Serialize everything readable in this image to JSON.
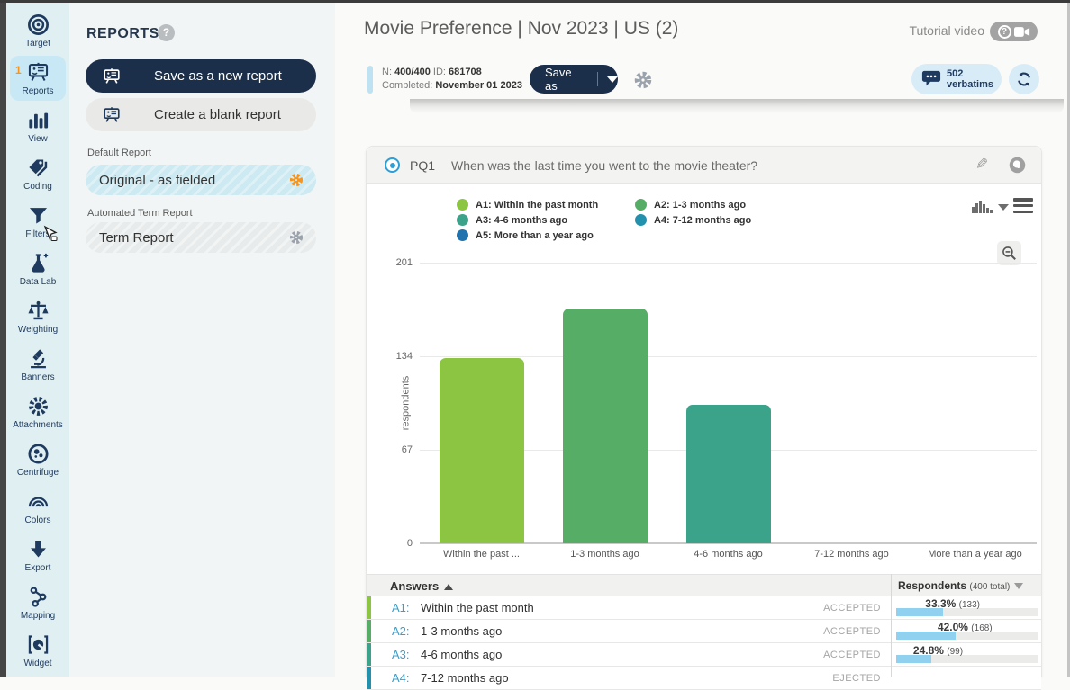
{
  "sidebar": {
    "items": [
      {
        "id": "target",
        "label": "Target",
        "icon": "target-icon",
        "active": false
      },
      {
        "id": "reports",
        "label": "Reports",
        "icon": "reports-icon",
        "active": true,
        "badge": "1"
      },
      {
        "id": "view",
        "label": "View",
        "icon": "bar-chart-icon",
        "active": false
      },
      {
        "id": "coding",
        "label": "Coding",
        "icon": "tags-icon",
        "active": false
      },
      {
        "id": "filters",
        "label": "Filters",
        "icon": "funnel-icon",
        "active": false,
        "cursor": true
      },
      {
        "id": "datalab",
        "label": "Data Lab",
        "icon": "flask-icon",
        "active": false
      },
      {
        "id": "weighting",
        "label": "Weighting",
        "icon": "scale-icon",
        "active": false
      },
      {
        "id": "banners",
        "label": "Banners",
        "icon": "microscope-icon",
        "active": false
      },
      {
        "id": "attachments",
        "label": "Attachments",
        "icon": "gear-sun-icon",
        "active": false
      },
      {
        "id": "centrifuge",
        "label": "Centrifuge",
        "icon": "centrifuge-icon",
        "active": false
      },
      {
        "id": "colors",
        "label": "Colors",
        "icon": "rainbow-icon",
        "active": false
      },
      {
        "id": "export",
        "label": "Export",
        "icon": "down-arrow-icon",
        "active": false
      },
      {
        "id": "mapping",
        "label": "Mapping",
        "icon": "nodes-icon",
        "active": false
      },
      {
        "id": "widget",
        "label": "Widget",
        "icon": "widget-icon",
        "active": false
      }
    ]
  },
  "reports_panel": {
    "title": "REPORTS",
    "save_button": "Save as a new report",
    "create_button": "Create a blank report",
    "default_section_label": "Default Report",
    "default_item": "Original - as fielded",
    "term_section_label": "Automated Term Report",
    "term_item": "Term Report"
  },
  "header": {
    "title": "Movie Preference | Nov 2023 | US (2)",
    "tutorial_label": "Tutorial video"
  },
  "toolbar": {
    "n_label": "N:",
    "n_value": "400/400",
    "id_label": "ID:",
    "id_value": "681708",
    "completed_label": "Completed:",
    "completed_value": "November 01 2023",
    "save_as_label": "Save as",
    "verbatims_count": "502",
    "verbatims_label": "verbatims"
  },
  "question": {
    "code": "PQ1",
    "text": "When was the last time you went to the movie theater?"
  },
  "chart_data": {
    "type": "bar",
    "ylabel": "respondents",
    "categories": [
      "Within the past month",
      "1-3 months ago",
      "4-6 months ago",
      "7-12 months ago",
      "More than a year ago"
    ],
    "x_tick_labels": [
      "Within the past ...",
      "1-3 months ago",
      "4-6 months ago",
      "7-12 months ago",
      "More than a year ago"
    ],
    "values": [
      133,
      168,
      99,
      0,
      0
    ],
    "colors": [
      "#8bc541",
      "#56ad66",
      "#3aa389",
      "#2191ae",
      "#2173ad"
    ],
    "ylim": [
      0,
      201
    ],
    "yticks": [
      0,
      67,
      134,
      201
    ],
    "grid": true,
    "legend_position": "top",
    "legend": [
      {
        "label": "A1: Within the past month",
        "color": "#8bc541"
      },
      {
        "label": "A2: 1-3 months ago",
        "color": "#56ad66"
      },
      {
        "label": "A3: 4-6 months ago",
        "color": "#3aa389"
      },
      {
        "label": "A4: 7-12 months ago",
        "color": "#2191ae"
      },
      {
        "label": "A5: More than a year ago",
        "color": "#2173ad"
      }
    ]
  },
  "table": {
    "answers_header": "Answers",
    "respondents_header": "Respondents",
    "respondents_total": "(400 total)",
    "rows": [
      {
        "code": "A1:",
        "label": "Within the past month",
        "status": "ACCEPTED",
        "pct_text": "33.3%",
        "count_text": "(133)",
        "pct": 33.3,
        "color": "#8bc541"
      },
      {
        "code": "A2:",
        "label": "1-3 months ago",
        "status": "ACCEPTED",
        "pct_text": "42.0%",
        "count_text": "(168)",
        "pct": 42.0,
        "color": "#56ad66"
      },
      {
        "code": "A3:",
        "label": "4-6 months ago",
        "status": "ACCEPTED",
        "pct_text": "24.8%",
        "count_text": "(99)",
        "pct": 24.8,
        "color": "#3aa389"
      },
      {
        "code": "A4:",
        "label": "7-12 months ago",
        "status": "EJECTED",
        "pct_text": "",
        "count_text": "",
        "pct": 0,
        "color": "#2191ae"
      }
    ]
  },
  "colors": {
    "navy": "#1e3a5f",
    "accent_orange": "#f7941d",
    "light_blue_pill": "#d8ecf8",
    "selected_item": "#c9e8f6",
    "progress_fill": "#8fd1ef"
  }
}
